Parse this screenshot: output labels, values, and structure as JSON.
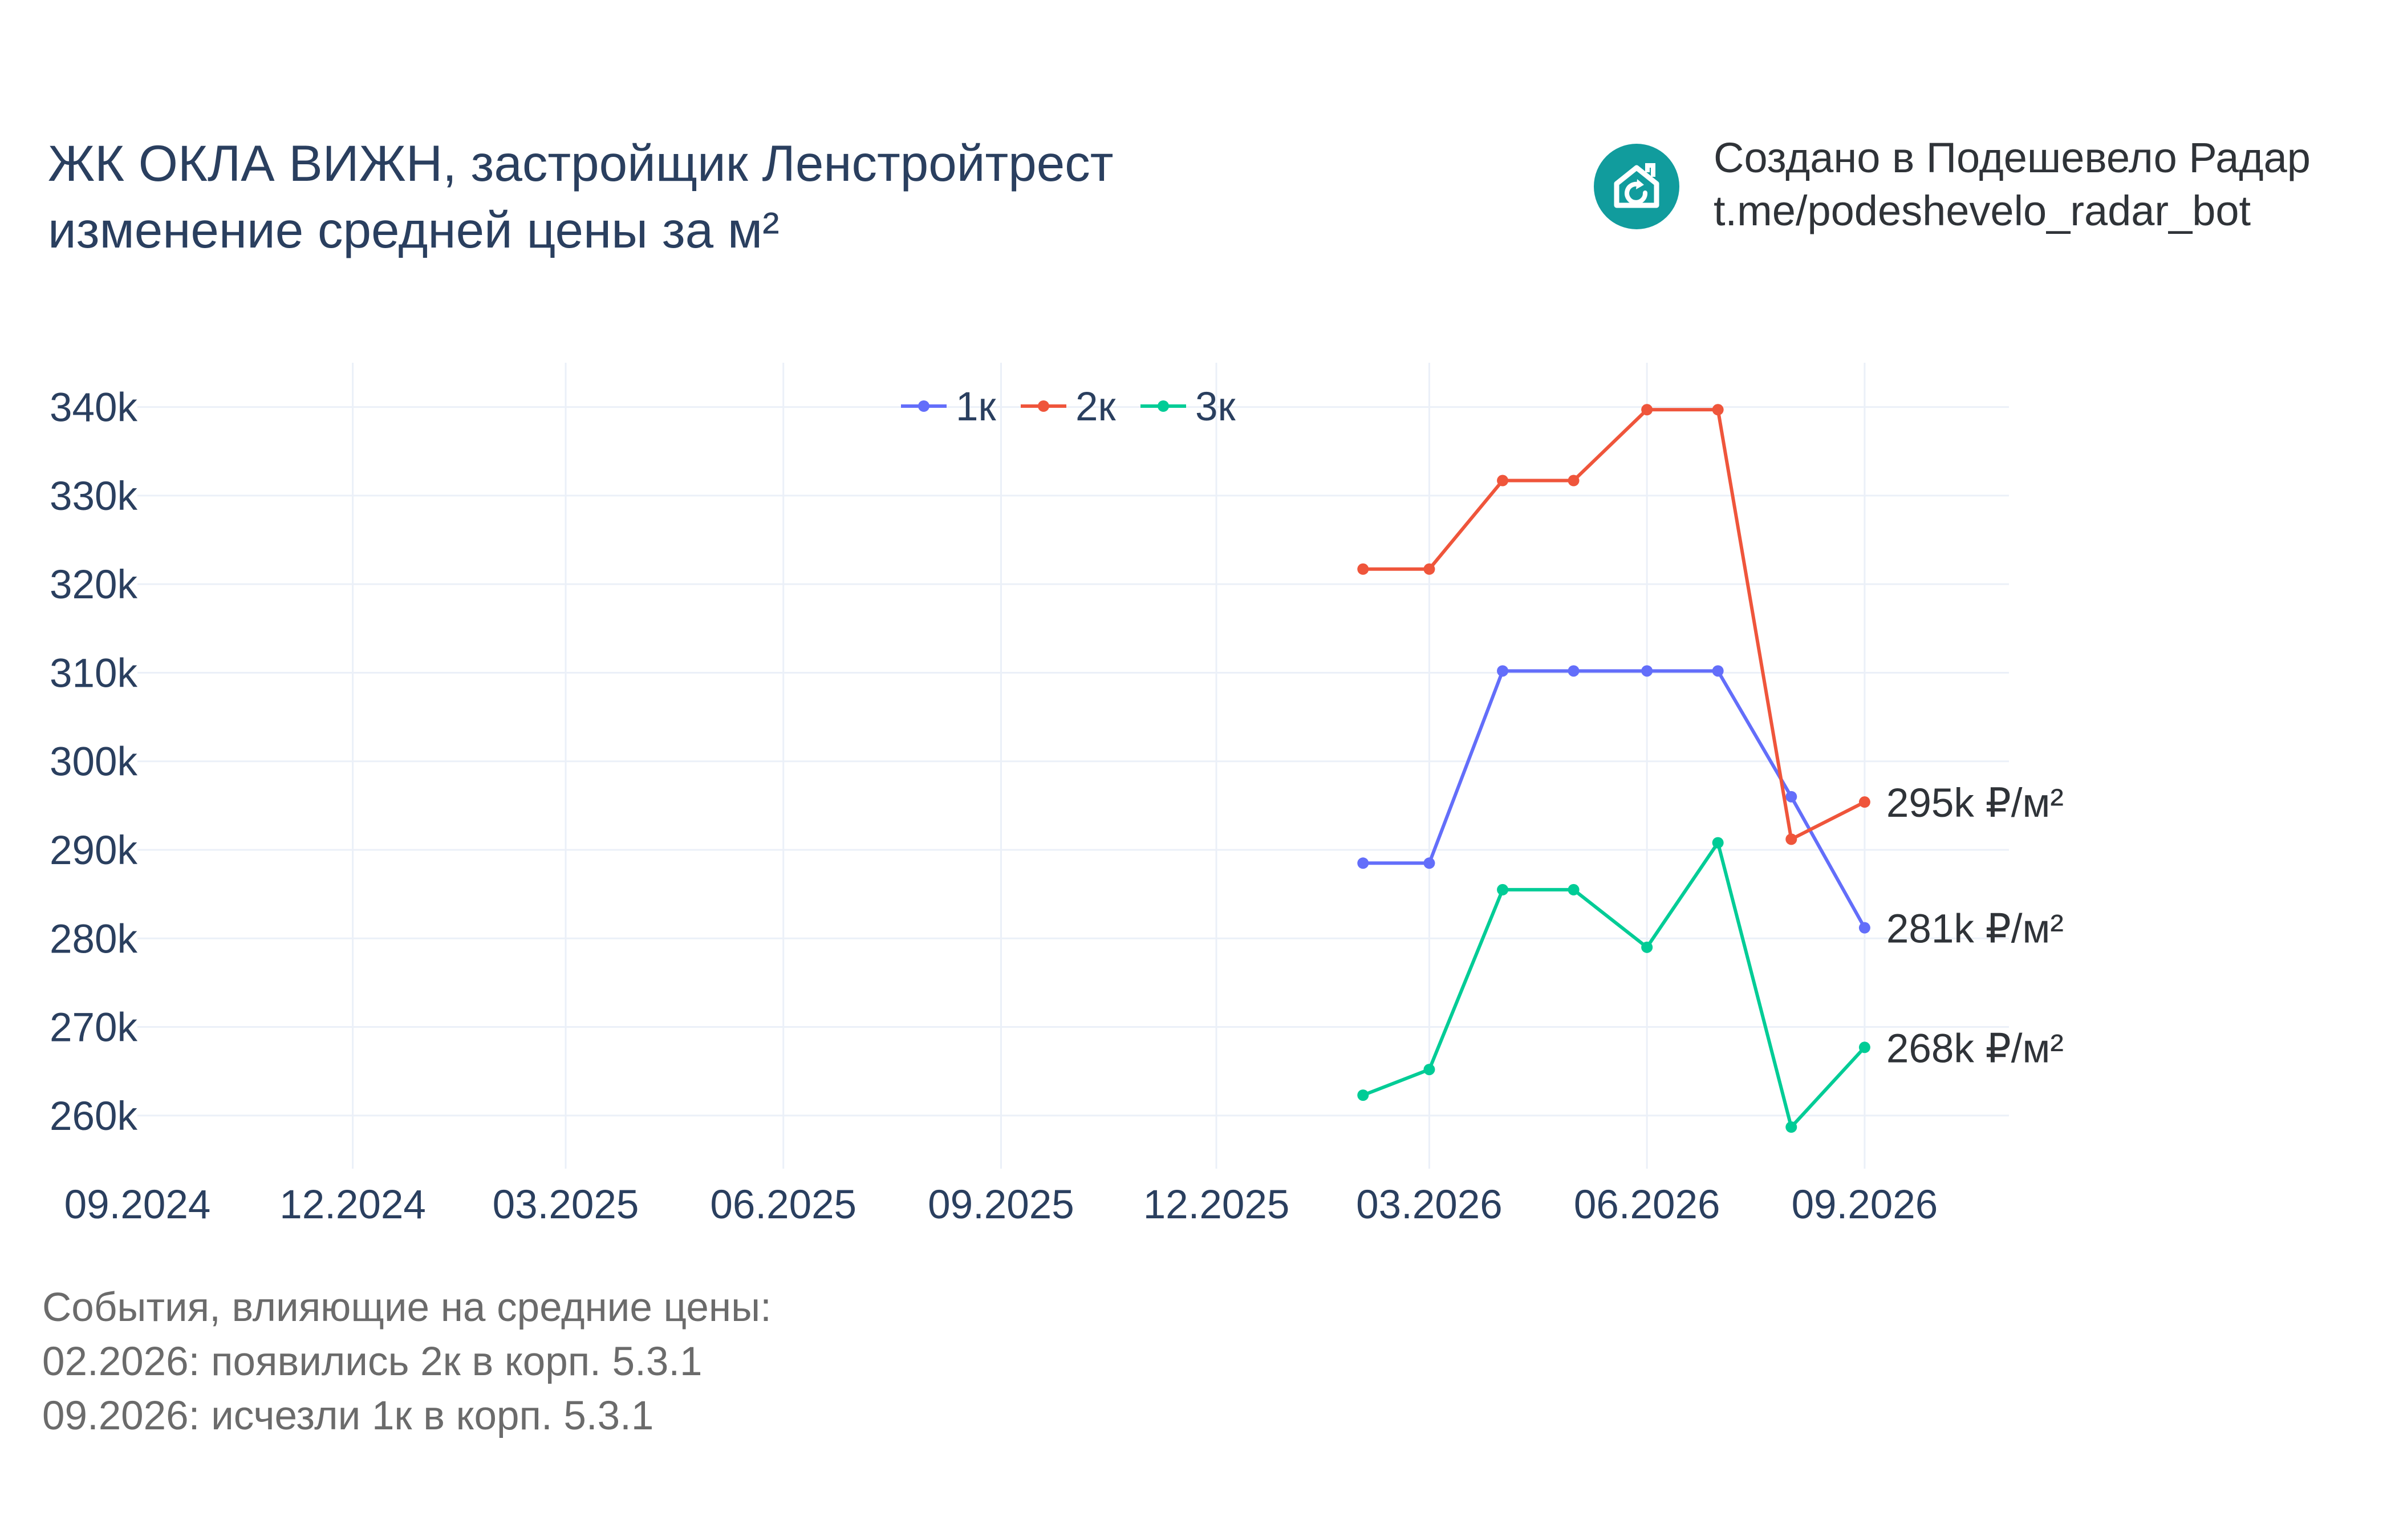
{
  "title": {
    "line1": "ЖК ОКЛА ВИЖН, застройщик Ленстройтрест",
    "line2": "изменение средней цены за м²"
  },
  "credit": {
    "logo_icon": "house-refresh-icon",
    "logo_color": "#119C9D",
    "line1": "Создано в Подешевело Радар",
    "line2": "t.me/podeshevelo_radar_bot"
  },
  "events": {
    "heading": "События, влияющие на средние цены:",
    "items": [
      "02.2026: появились 2к в корп. 5.3.1",
      "09.2026: исчезли 1к в корп. 5.3.1"
    ]
  },
  "chart_data": {
    "type": "line",
    "x_tick_labels": [
      "09.2024",
      "12.2024",
      "03.2025",
      "06.2025",
      "09.2025",
      "12.2025",
      "03.2026",
      "06.2026",
      "09.2026"
    ],
    "x_tick_dates": [
      "2024-09-01",
      "2024-12-01",
      "2025-03-01",
      "2025-06-01",
      "2025-09-01",
      "2025-12-01",
      "2026-03-01",
      "2026-06-01",
      "2026-09-01"
    ],
    "x_range": [
      "2024-09-01",
      "2026-11-01"
    ],
    "y_tick_values": [
      260000,
      270000,
      280000,
      290000,
      300000,
      310000,
      320000,
      330000,
      340000
    ],
    "y_tick_labels": [
      "260k",
      "270k",
      "280k",
      "290k",
      "300k",
      "310k",
      "320k",
      "330k",
      "340k"
    ],
    "y_range": [
      254000,
      345000
    ],
    "grid": true,
    "legend_position": "top-center",
    "x": [
      "2026-02-01",
      "2026-03-01",
      "2026-04-01",
      "2026-05-01",
      "2026-06-01",
      "2026-07-01",
      "2026-08-01",
      "2026-09-01"
    ],
    "series": [
      {
        "name": "1к",
        "color": "#636efa",
        "values": [
          288500,
          288500,
          310200,
          310200,
          310200,
          310200,
          296000,
          281200
        ],
        "end_label": "281k ₽/м²"
      },
      {
        "name": "2к",
        "color": "#EF553B",
        "values": [
          321700,
          321700,
          331700,
          331700,
          339700,
          339700,
          291200,
          295400
        ],
        "end_label": "295k ₽/м²"
      },
      {
        "name": "3к",
        "color": "#00cc96",
        "values": [
          262300,
          265200,
          285500,
          285500,
          279000,
          290800,
          258700,
          267700
        ],
        "end_label": "268k ₽/м²"
      }
    ]
  }
}
